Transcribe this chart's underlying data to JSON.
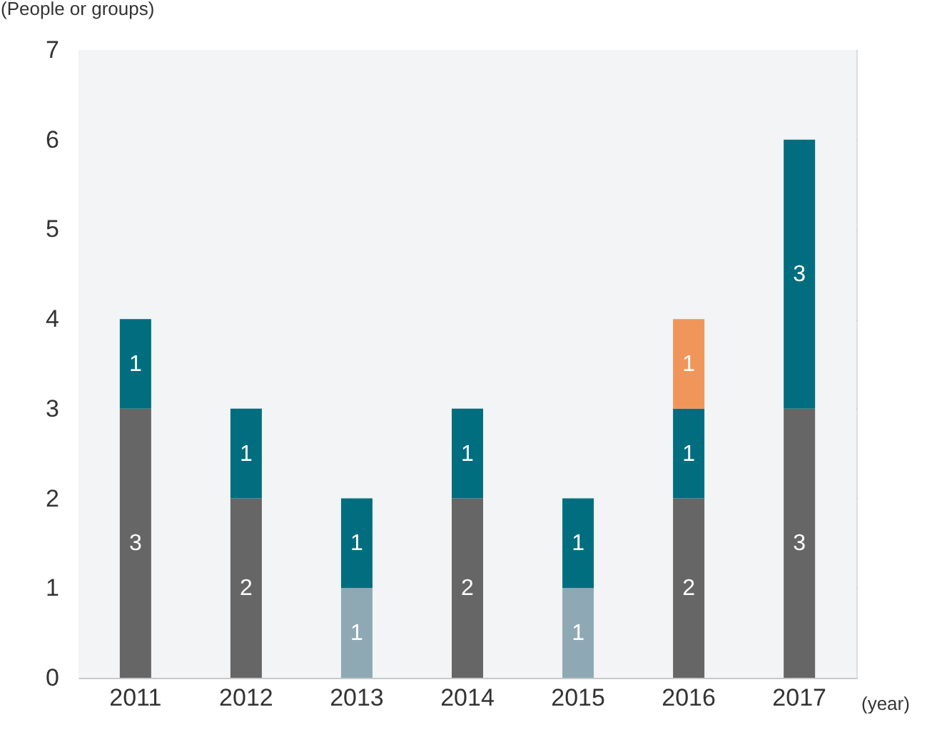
{
  "chart_data": {
    "type": "bar",
    "stacked": true,
    "ylabel": "(People or groups)",
    "xlabel": "(year)",
    "categories": [
      "2011",
      "2012",
      "2013",
      "2014",
      "2015",
      "2016",
      "2017"
    ],
    "series": [
      {
        "color": "#666666",
        "values": [
          3,
          2,
          null,
          2,
          null,
          2,
          3
        ]
      },
      {
        "color": "#8fa9b4",
        "values": [
          null,
          null,
          1,
          null,
          1,
          null,
          null
        ]
      },
      {
        "color": "#006e7f",
        "values": [
          1,
          1,
          1,
          1,
          1,
          1,
          3
        ]
      },
      {
        "color": "#f0965a",
        "values": [
          null,
          null,
          null,
          null,
          null,
          1,
          null
        ]
      }
    ],
    "ylim": [
      0,
      7
    ],
    "yticks": [
      0,
      1,
      2,
      3,
      4,
      5,
      6,
      7
    ],
    "grid": "y",
    "data_labels": true
  }
}
